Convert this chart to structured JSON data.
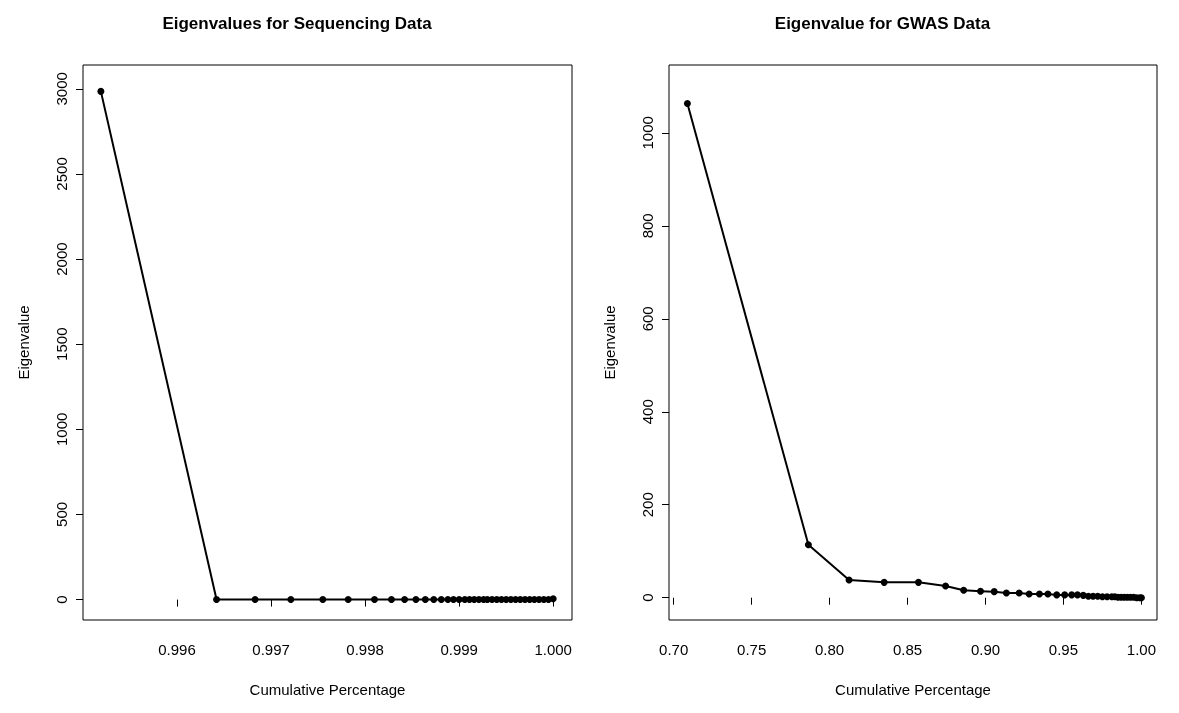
{
  "chart_data": [
    {
      "type": "line",
      "title": "Eigenvalues for Sequencing Data",
      "xlabel": "Cumulative Percentage",
      "ylabel": "Eigenvalue",
      "marker": "circle",
      "line_style": "solid",
      "grid": false,
      "xlim": [
        0.995,
        1.0002
      ],
      "ylim": [
        -120,
        3140
      ],
      "xticks": [
        0.996,
        0.997,
        0.998,
        0.999,
        {
          "value": 1,
          "label": "1.000"
        }
      ],
      "yticks": [
        0,
        500,
        1000,
        1500,
        2000,
        2500,
        3000
      ],
      "series": [
        {
          "color": "#000000",
          "x": [
            0.99519,
            0.99642,
            0.99683,
            0.99721,
            0.99755,
            0.99782,
            0.9981,
            0.99828,
            0.99842,
            0.99854,
            0.99864,
            0.99873,
            0.99881,
            0.99888,
            0.99894,
            0.999,
            0.99906,
            0.99911,
            0.99916,
            0.99921,
            0.99926,
            0.9993,
            0.99935,
            0.9994,
            0.99945,
            0.9995,
            0.99955,
            0.9996,
            0.99965,
            0.9997,
            0.99975,
            0.9998,
            0.99985,
            0.9999,
            0.99995,
            1.0
          ],
          "values": [
            2985,
            0,
            0,
            0,
            0,
            0,
            0,
            0,
            0,
            0,
            0,
            0,
            0,
            0,
            0,
            0,
            0,
            0,
            0,
            0,
            0,
            0,
            0,
            0,
            0,
            0,
            0,
            0,
            0,
            0,
            0,
            0,
            0,
            0,
            0,
            5
          ]
        }
      ]
    },
    {
      "type": "line",
      "title": "Eigenvalue for GWAS Data",
      "xlabel": "Cumulative Percentage",
      "ylabel": "Eigenvalue",
      "marker": "circle",
      "line_style": "solid",
      "grid": false,
      "xlim": [
        0.697,
        1.01
      ],
      "ylim": [
        -48,
        1146
      ],
      "xticks": [
        {
          "value": 0.7,
          "label": "0.70"
        },
        0.75,
        {
          "value": 0.8,
          "label": "0.80"
        },
        0.85,
        {
          "value": 0.9,
          "label": "0.90"
        },
        0.95,
        {
          "value": 1,
          "label": "1.00"
        }
      ],
      "yticks": [
        0,
        200,
        400,
        600,
        800,
        1000
      ],
      "series": [
        {
          "color": "#000000",
          "x": [
            0.7088,
            0.7864,
            0.8125,
            0.835,
            0.857,
            0.8744,
            0.886,
            0.8968,
            0.9056,
            0.9134,
            0.9216,
            0.928,
            0.9346,
            0.94,
            0.9457,
            0.9508,
            0.9553,
            0.959,
            0.9627,
            0.966,
            0.969,
            0.972,
            0.975,
            0.978,
            0.981,
            0.983,
            0.985,
            0.987,
            0.989,
            0.991,
            0.993,
            0.995,
            0.997,
            0.999,
            1.0
          ],
          "values": [
            1063,
            114,
            38,
            33,
            33,
            25,
            16,
            14,
            13,
            10,
            10,
            8,
            8,
            8,
            6,
            6,
            6,
            6,
            5,
            3,
            3,
            3,
            2,
            2,
            2,
            2,
            1,
            1,
            1,
            1,
            1,
            1,
            0,
            0,
            0
          ]
        }
      ]
    }
  ]
}
